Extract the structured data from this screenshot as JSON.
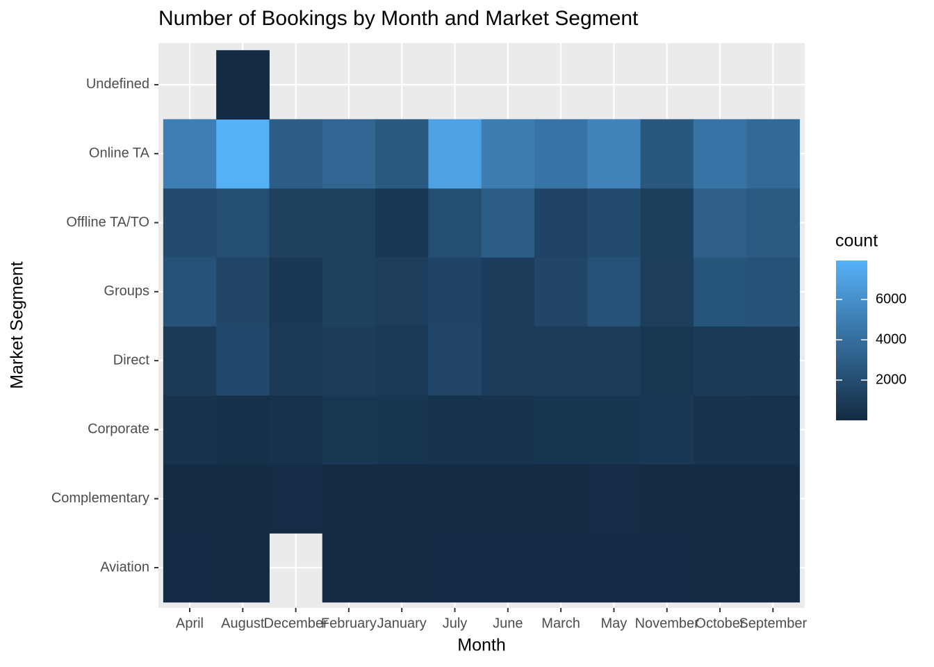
{
  "chart_data": {
    "type": "heatmap",
    "title": "Number of Bookings by Month and Market Segment",
    "x_label": "Month",
    "y_label": "Market Segment",
    "categories": [
      "April",
      "August",
      "December",
      "February",
      "January",
      "July",
      "June",
      "March",
      "May",
      "November",
      "October",
      "September"
    ],
    "series": [
      {
        "name": "Aviation",
        "values": [
          30,
          20,
          null,
          20,
          20,
          25,
          30,
          30,
          25,
          30,
          40,
          20
        ]
      },
      {
        "name": "Complementary",
        "values": [
          60,
          60,
          80,
          40,
          50,
          50,
          60,
          60,
          80,
          50,
          60,
          50
        ]
      },
      {
        "name": "Corporate",
        "values": [
          500,
          300,
          400,
          700,
          600,
          400,
          500,
          600,
          600,
          800,
          500,
          400
        ]
      },
      {
        "name": "Direct",
        "values": [
          900,
          1800,
          900,
          1000,
          900,
          1600,
          1000,
          1000,
          1000,
          700,
          900,
          900
        ]
      },
      {
        "name": "Groups",
        "values": [
          2300,
          1600,
          800,
          1300,
          1100,
          1500,
          1000,
          1600,
          2300,
          1100,
          2400,
          2300
        ]
      },
      {
        "name": "Offline TA/TO",
        "values": [
          1900,
          2100,
          1300,
          1300,
          800,
          2100,
          3000,
          1500,
          1900,
          1200,
          3100,
          2800
        ]
      },
      {
        "name": "Online TA",
        "values": [
          5000,
          7900,
          3000,
          3500,
          2700,
          7000,
          4900,
          4300,
          5300,
          2600,
          4300,
          3700
        ]
      },
      {
        "name": "Undefined",
        "values": [
          null,
          2,
          null,
          null,
          null,
          null,
          null,
          null,
          null,
          null,
          null,
          null
        ]
      }
    ],
    "legend_title": "count",
    "color_low": "#132B43",
    "color_high": "#56B1F7",
    "colorlim": [
      1,
      7935
    ],
    "colorticks": [
      2000,
      4000,
      6000
    ]
  }
}
